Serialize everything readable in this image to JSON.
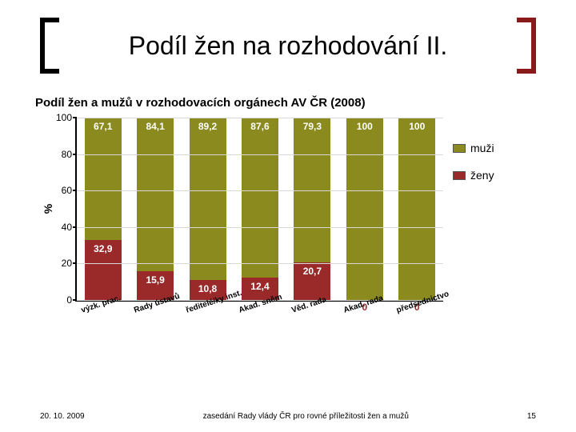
{
  "slide": {
    "title": "Podíl žen na rozhodování II.",
    "bracket_left_color": "#000000",
    "bracket_right_color": "#8a1a1a"
  },
  "chart": {
    "type": "stacked-bar",
    "title": "Podíl žen a mužů v rozhodovacích orgánech AV ČR (2008)",
    "ylabel": "%",
    "ylim": [
      0,
      100
    ],
    "ytick_step": 20,
    "yticks": [
      0,
      20,
      40,
      60,
      80,
      100
    ],
    "grid_color": "#d9d9d9",
    "background_color": "#ffffff",
    "label_fontsize": 12,
    "title_fontsize": 15,
    "categories": [
      "výzk. prac.",
      "Rady ústavů",
      "ředitelé/ky inst.",
      "Akad. sněm",
      "Věd. rada",
      "Akad. rada",
      "předsednictvo"
    ],
    "series": {
      "women": {
        "label": "ženy",
        "color": "#9a2a2a",
        "values": [
          32.9,
          15.9,
          10.8,
          12.4,
          20.7,
          0,
          0
        ]
      },
      "men": {
        "label": "muži",
        "color": "#8a8a1f",
        "values": [
          67.1,
          84.1,
          89.2,
          87.6,
          79.3,
          100,
          100
        ]
      }
    },
    "value_label_color": "#ffffff",
    "value_zero_color": "#9a2a2a",
    "bar_width": 0.7
  },
  "footer": {
    "date": "20. 10. 2009",
    "caption": "zasedání Rady vlády ČR pro rovné příležitosti žen a mužů",
    "page": "15"
  }
}
